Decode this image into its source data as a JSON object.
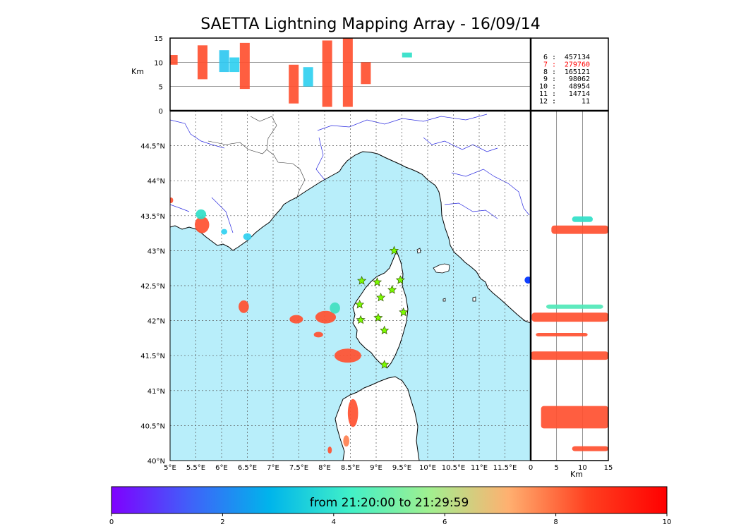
{
  "title": "SAETTA Lightning Mapping Array - 16/09/14",
  "map": {
    "lon_ticks": [
      "5°E",
      "5.5°E",
      "6°E",
      "6.5°E",
      "7°E",
      "7.5°E",
      "8°E",
      "8.5°E",
      "9°E",
      "9.5°E",
      "10°E",
      "10.5°E",
      "11°E",
      "11.5°E"
    ],
    "lat_ticks": [
      "40°N",
      "40.5°N",
      "41°N",
      "41.5°N",
      "42°N",
      "42.5°N",
      "43°N",
      "43.5°N",
      "44°N",
      "44.5°N"
    ],
    "lon_range": [
      5,
      12
    ],
    "lat_range": [
      40,
      45
    ],
    "sea_color": "#b8eefa",
    "land_color": "#ffffff",
    "river_color": "#2a2ae0",
    "station_color": "#7cfc00",
    "station_icon": "star",
    "stations": [
      {
        "lon": 9.35,
        "lat": 43.0
      },
      {
        "lon": 8.72,
        "lat": 42.57
      },
      {
        "lon": 9.02,
        "lat": 42.55
      },
      {
        "lon": 9.47,
        "lat": 42.58
      },
      {
        "lon": 9.31,
        "lat": 42.44
      },
      {
        "lon": 9.09,
        "lat": 42.33
      },
      {
        "lon": 8.68,
        "lat": 42.23
      },
      {
        "lon": 9.53,
        "lat": 42.12
      },
      {
        "lon": 8.7,
        "lat": 42.01
      },
      {
        "lon": 9.04,
        "lat": 42.04
      },
      {
        "lon": 9.16,
        "lat": 41.86
      },
      {
        "lon": 9.16,
        "lat": 41.37
      }
    ],
    "cells": [
      {
        "lon": 5.62,
        "lat": 43.37,
        "rx": 0.14,
        "ry": 0.12,
        "color": "#ff5030"
      },
      {
        "lon": 5.6,
        "lat": 43.52,
        "rx": 0.1,
        "ry": 0.07,
        "color": "#30e0c8"
      },
      {
        "lon": 6.05,
        "lat": 43.27,
        "rx": 0.06,
        "ry": 0.04,
        "color": "#30d0f0"
      },
      {
        "lon": 6.5,
        "lat": 43.2,
        "rx": 0.08,
        "ry": 0.05,
        "color": "#30d0f0"
      },
      {
        "lon": 6.43,
        "lat": 42.2,
        "rx": 0.1,
        "ry": 0.09,
        "color": "#ff5030"
      },
      {
        "lon": 7.45,
        "lat": 42.02,
        "rx": 0.13,
        "ry": 0.06,
        "color": "#ff5030"
      },
      {
        "lon": 8.02,
        "lat": 42.05,
        "rx": 0.2,
        "ry": 0.09,
        "color": "#ff5030"
      },
      {
        "lon": 8.2,
        "lat": 42.18,
        "rx": 0.1,
        "ry": 0.08,
        "color": "#40e0c0"
      },
      {
        "lon": 7.88,
        "lat": 41.8,
        "rx": 0.09,
        "ry": 0.04,
        "color": "#ff5030"
      },
      {
        "lon": 8.45,
        "lat": 41.5,
        "rx": 0.26,
        "ry": 0.1,
        "color": "#ff5030"
      },
      {
        "lon": 8.55,
        "lat": 40.68,
        "rx": 0.1,
        "ry": 0.2,
        "color": "#ff5030"
      },
      {
        "lon": 8.42,
        "lat": 40.28,
        "rx": 0.06,
        "ry": 0.08,
        "color": "#ff8050"
      },
      {
        "lon": 8.1,
        "lat": 40.15,
        "rx": 0.04,
        "ry": 0.05,
        "color": "#ff5030"
      },
      {
        "lon": 5.02,
        "lat": 43.72,
        "rx": 0.04,
        "ry": 0.04,
        "color": "#ff5030"
      }
    ],
    "blue_marker": {
      "lon": 11.95,
      "lat": 42.58,
      "color": "#1040ff"
    }
  },
  "top_panel": {
    "ylabel": "Km",
    "alt_ticks": [
      "0",
      "5",
      "10",
      "15"
    ],
    "alt_range": [
      0,
      15
    ],
    "gridlines": [
      5,
      10
    ],
    "columns": [
      {
        "lon": 5.05,
        "base": 9.5,
        "top": 11.5,
        "color": "#ff5030"
      },
      {
        "lon": 5.63,
        "base": 6.5,
        "top": 13.5,
        "color": "#ff5030"
      },
      {
        "lon": 6.05,
        "base": 8.0,
        "top": 12.5,
        "color": "#30c8f0"
      },
      {
        "lon": 6.25,
        "base": 8.0,
        "top": 11.0,
        "color": "#30d0f0"
      },
      {
        "lon": 6.45,
        "base": 4.5,
        "top": 14.0,
        "color": "#ff5030"
      },
      {
        "lon": 7.4,
        "base": 1.5,
        "top": 9.5,
        "color": "#ff5030"
      },
      {
        "lon": 7.68,
        "base": 5.0,
        "top": 9.0,
        "color": "#30d0f0"
      },
      {
        "lon": 8.05,
        "base": 0.8,
        "top": 14.5,
        "color": "#ff5030"
      },
      {
        "lon": 8.45,
        "base": 0.8,
        "top": 15.0,
        "color": "#ff5030"
      },
      {
        "lon": 8.8,
        "base": 5.5,
        "top": 10.0,
        "color": "#ff5030"
      },
      {
        "lon": 9.6,
        "base": 11.0,
        "top": 12.0,
        "color": "#30e0c8"
      }
    ]
  },
  "station_counts": [
    {
      "stations": "6",
      "count": "457134",
      "color": "#000000"
    },
    {
      "stations": "7",
      "count": "279760",
      "color": "#ff0000"
    },
    {
      "stations": "8",
      "count": "165121",
      "color": "#000000"
    },
    {
      "stations": "9",
      "count": "98062",
      "color": "#000000"
    },
    {
      "stations": "10",
      "count": "48954",
      "color": "#000000"
    },
    {
      "stations": "11",
      "count": "14714",
      "color": "#000000"
    },
    {
      "stations": "12",
      "count": "11",
      "color": "#000000"
    }
  ],
  "right_panel": {
    "xlabel": "Km",
    "alt_ticks": [
      "0",
      "5",
      "10",
      "15"
    ],
    "alt_range": [
      0,
      15
    ],
    "gridlines": [
      5,
      10
    ],
    "bands": [
      {
        "lat": 43.3,
        "base": 4.0,
        "top": 15.0,
        "thick": 0.12,
        "color": "#ff5030"
      },
      {
        "lat": 43.45,
        "base": 8.0,
        "top": 12.0,
        "thick": 0.08,
        "color": "#30e0c8"
      },
      {
        "lat": 42.05,
        "base": 0.2,
        "top": 15.0,
        "thick": 0.13,
        "color": "#ff5030"
      },
      {
        "lat": 42.2,
        "base": 3.0,
        "top": 14.0,
        "thick": 0.06,
        "color": "#50e8b8"
      },
      {
        "lat": 41.8,
        "base": 1.0,
        "top": 11.0,
        "thick": 0.05,
        "color": "#ff5030"
      },
      {
        "lat": 41.5,
        "base": 0.0,
        "top": 15.0,
        "thick": 0.12,
        "color": "#ff5030"
      },
      {
        "lat": 40.62,
        "base": 2.0,
        "top": 15.0,
        "thick": 0.32,
        "color": "#ff5030"
      },
      {
        "lat": 40.17,
        "base": 8.0,
        "top": 15.0,
        "thick": 0.07,
        "color": "#ff5030"
      }
    ]
  },
  "colorbar": {
    "label": "from 21:20:00 to 21:29:59",
    "ticks": [
      "0",
      "2",
      "4",
      "6",
      "8",
      "10"
    ],
    "colors": [
      "#7f00ff",
      "#3f62f9",
      "#00b5eb",
      "#40f0c8",
      "#a0f090",
      "#ffb070",
      "#ff4020",
      "#ff0000"
    ]
  }
}
